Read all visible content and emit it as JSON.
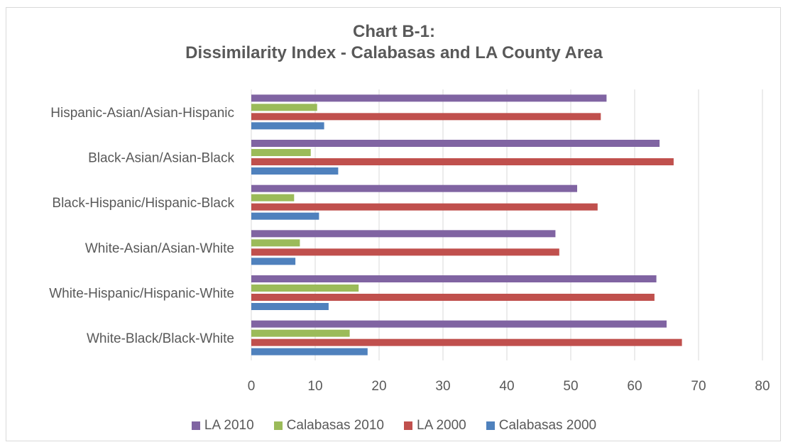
{
  "chart_data": {
    "type": "bar",
    "orientation": "horizontal",
    "title": "Chart B-1:",
    "subtitle": "Dissimilarity Index - Calabasas and LA County Area",
    "categories": [
      "Hispanic-Asian/Asian-Hispanic",
      "Black-Asian/Asian-Black",
      "Black-Hispanic/Hispanic-Black",
      "White-Asian/Asian-White",
      "White-Hispanic/Hispanic-White",
      "White-Black/Black-White"
    ],
    "series": [
      {
        "name": "LA 2010",
        "color": "#8064a2",
        "values": [
          55.6,
          63.9,
          51.0,
          47.6,
          63.4,
          65.0
        ]
      },
      {
        "name": "Calabasas 2010",
        "color": "#9bbb59",
        "values": [
          10.3,
          9.3,
          6.7,
          7.6,
          16.8,
          15.4
        ]
      },
      {
        "name": "LA 2000",
        "color": "#c0504d",
        "values": [
          54.7,
          66.1,
          54.2,
          48.2,
          63.1,
          67.4
        ]
      },
      {
        "name": "Calabasas 2000",
        "color": "#4f81bd",
        "values": [
          11.4,
          13.6,
          10.6,
          6.9,
          12.1,
          18.2
        ]
      }
    ],
    "xlim": [
      0,
      80
    ],
    "xticks": [
      "0",
      "10",
      "20",
      "30",
      "40",
      "50",
      "60",
      "70",
      "80"
    ],
    "grid": true,
    "legend_position": "bottom",
    "legend_order": [
      "LA 2010",
      "Calabasas 2010",
      "LA 2000",
      "Calabasas 2000"
    ]
  }
}
